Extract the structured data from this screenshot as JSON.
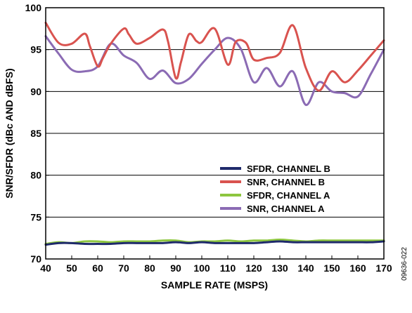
{
  "figure_id": "09636-022",
  "chart_data": {
    "type": "line",
    "title": "",
    "xlabel": "SAMPLE RATE (MSPS)",
    "ylabel": "SNR/SFDR (dBc AND dBFS)",
    "xlim": [
      40,
      170
    ],
    "ylim": [
      70,
      100
    ],
    "x_ticks": [
      40,
      50,
      60,
      70,
      80,
      90,
      100,
      110,
      120,
      130,
      140,
      150,
      160,
      170
    ],
    "y_ticks": [
      70,
      75,
      80,
      85,
      90,
      95,
      100
    ],
    "grid": "horizontal",
    "legend_position": "center-right",
    "series": [
      {
        "name": "SFDR, CHANNEL B",
        "color": "#1f2a6b",
        "x": [
          40,
          45,
          50,
          55,
          60,
          65,
          70,
          75,
          80,
          85,
          90,
          95,
          100,
          105,
          110,
          115,
          120,
          125,
          130,
          135,
          140,
          145,
          150,
          155,
          160,
          165,
          170
        ],
        "values": [
          71.7,
          71.9,
          71.9,
          71.8,
          71.8,
          71.8,
          71.9,
          71.9,
          71.9,
          71.9,
          72.0,
          71.9,
          72.0,
          71.9,
          71.9,
          71.9,
          71.9,
          72.0,
          72.1,
          72.0,
          72.0,
          72.0,
          72.0,
          72.0,
          72.0,
          72.0,
          72.1
        ]
      },
      {
        "name": "SNR, CHANNEL B",
        "color": "#d9534f",
        "x": [
          40,
          45,
          50,
          55,
          57,
          60,
          62,
          65,
          70,
          72,
          75,
          80,
          85,
          87,
          90,
          92,
          95,
          98,
          100,
          105,
          110,
          113,
          117,
          120,
          125,
          130,
          135,
          140,
          145,
          150,
          155,
          160,
          165,
          170
        ],
        "values": [
          98.2,
          95.8,
          95.7,
          96.9,
          95.4,
          93.0,
          94.0,
          95.7,
          97.5,
          96.8,
          95.7,
          96.4,
          97.4,
          96.0,
          91.6,
          93.5,
          96.8,
          96.0,
          95.9,
          97.5,
          93.2,
          95.9,
          95.8,
          93.8,
          94.0,
          94.6,
          97.9,
          92.8,
          90.1,
          92.4,
          91.1,
          92.5,
          94.3,
          96.1
        ]
      },
      {
        "name": "SFDR, CHANNEL A",
        "color": "#8dc63f",
        "x": [
          40,
          45,
          50,
          55,
          60,
          65,
          70,
          75,
          80,
          85,
          90,
          95,
          100,
          105,
          110,
          115,
          120,
          125,
          130,
          135,
          140,
          145,
          150,
          155,
          160,
          165,
          170
        ],
        "values": [
          71.8,
          72.0,
          71.9,
          72.1,
          72.1,
          72.0,
          72.1,
          72.1,
          72.1,
          72.2,
          72.2,
          72.0,
          72.1,
          72.1,
          72.2,
          72.1,
          72.2,
          72.2,
          72.3,
          72.2,
          72.1,
          72.2,
          72.2,
          72.2,
          72.2,
          72.2,
          72.2
        ]
      },
      {
        "name": "SNR, CHANNEL A",
        "color": "#8b6bb4",
        "x": [
          40,
          45,
          50,
          55,
          60,
          65,
          70,
          75,
          80,
          85,
          90,
          95,
          100,
          105,
          110,
          115,
          120,
          125,
          130,
          135,
          140,
          145,
          150,
          155,
          160,
          165,
          170
        ],
        "values": [
          96.6,
          94.5,
          92.6,
          92.4,
          93.0,
          95.7,
          94.3,
          93.4,
          91.5,
          92.5,
          91.0,
          91.5,
          93.3,
          95.0,
          96.4,
          95.1,
          91.1,
          92.8,
          90.6,
          92.4,
          88.4,
          91.1,
          90.0,
          89.8,
          89.4,
          92.1,
          95.0
        ]
      }
    ]
  }
}
